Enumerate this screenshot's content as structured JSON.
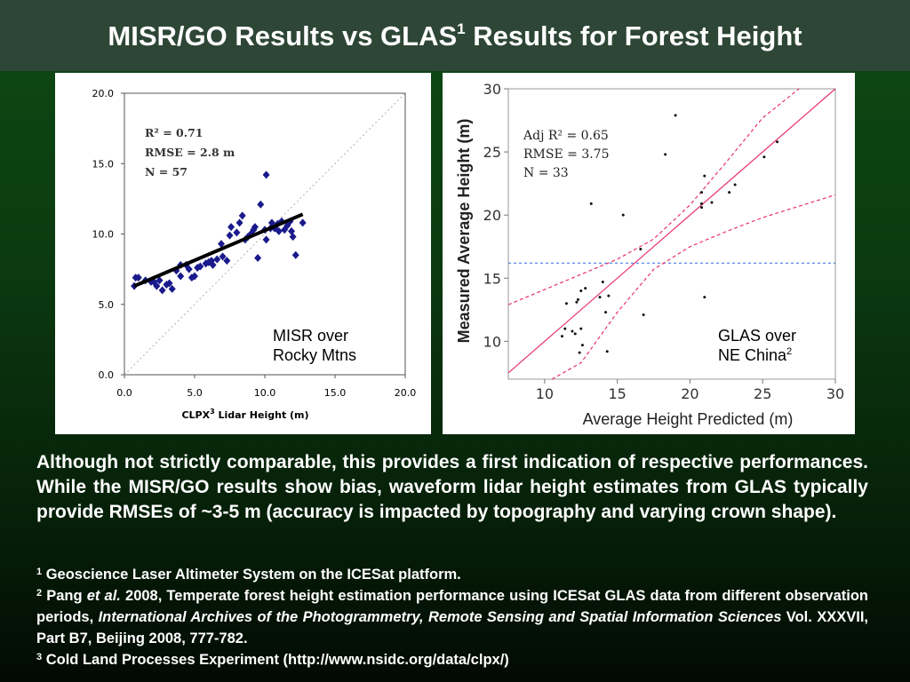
{
  "slide": {
    "title_main": "MISR/GO Results vs GLAS",
    "title_sup": "1",
    "title_tail": " Results for Forest Height",
    "body": "Although not strictly comparable, this provides a first indication of respective performances. While the MISR/GO results show bias, waveform lidar height estimates from GLAS typically provide RMSEs of ~3-5 m (accuracy is impacted by topography and varying crown shape).",
    "footnotes": {
      "n1_mark": "1",
      "n1_text": " Geoscience Laser Altimeter System on the ICESat platform.",
      "n2_mark": "2",
      "n2_author": " Pang ",
      "n2_etal": "et al.",
      "n2_text": " 2008, Temperate forest height estimation performance using ICESat GLAS data from different observation periods, ",
      "n2_journal": "International Archives of the Photogrammetry, Remote Sensing and Spatial Information Sciences",
      "n2_tail": " Vol. XXXVII, Part B7, Beijing 2008, 777-782.",
      "n3_mark": "3",
      "n3_text": " Cold Land Processes Experiment (http://www.nsidc.org/data/clpx/)"
    }
  },
  "chart_data": [
    {
      "type": "scatter",
      "xlabel": "CLPX",
      "xlabel_sup": "3",
      "xlabel_tail": " Lidar Height (m)",
      "ylabel": "",
      "xlim": [
        0,
        20
      ],
      "ylim": [
        0,
        20
      ],
      "xticks": [
        "0.0",
        "5.0",
        "10.0",
        "15.0",
        "20.0"
      ],
      "yticks": [
        "0.0",
        "5.0",
        "10.0",
        "15.0",
        "20.0"
      ],
      "stats": [
        "R² = 0.71",
        "RMSE = 2.8 m",
        "N = 57"
      ],
      "annotation": [
        "MISR over",
        "Rocky Mtns"
      ],
      "point_color": "#1a1a8c",
      "fit_line": [
        [
          0.7,
          6.3
        ],
        [
          12.7,
          11.4
        ]
      ],
      "one_to_one": true,
      "points": [
        [
          0.7,
          6.3
        ],
        [
          0.8,
          6.9
        ],
        [
          1.0,
          6.9
        ],
        [
          1.5,
          6.7
        ],
        [
          2.1,
          6.6
        ],
        [
          2.3,
          6.3
        ],
        [
          2.5,
          6.7
        ],
        [
          2.7,
          6.0
        ],
        [
          3.2,
          6.5
        ],
        [
          3.4,
          6.1
        ],
        [
          3.7,
          7.4
        ],
        [
          4.0,
          7.0
        ],
        [
          4.0,
          7.8
        ],
        [
          4.4,
          7.8
        ],
        [
          4.8,
          6.9
        ],
        [
          5.0,
          7.0
        ],
        [
          5.2,
          7.6
        ],
        [
          5.4,
          7.7
        ],
        [
          5.8,
          7.9
        ],
        [
          6.0,
          8.0
        ],
        [
          6.3,
          7.8
        ],
        [
          6.6,
          8.2
        ],
        [
          6.9,
          9.3
        ],
        [
          7.0,
          8.4
        ],
        [
          7.3,
          8.1
        ],
        [
          7.5,
          9.9
        ],
        [
          7.6,
          10.5
        ],
        [
          8.0,
          10.1
        ],
        [
          8.2,
          10.8
        ],
        [
          8.4,
          11.3
        ],
        [
          8.6,
          9.6
        ],
        [
          8.8,
          9.8
        ],
        [
          9.0,
          10.0
        ],
        [
          9.2,
          10.3
        ],
        [
          9.5,
          8.3
        ],
        [
          9.7,
          12.1
        ],
        [
          10.0,
          10.3
        ],
        [
          10.1,
          9.6
        ],
        [
          10.1,
          14.2
        ],
        [
          10.4,
          10.4
        ],
        [
          10.5,
          10.8
        ],
        [
          10.7,
          10.4
        ],
        [
          10.9,
          10.7
        ],
        [
          11.0,
          10.2
        ],
        [
          11.2,
          10.9
        ],
        [
          11.4,
          10.3
        ],
        [
          11.6,
          10.6
        ],
        [
          11.8,
          10.9
        ],
        [
          11.9,
          10.2
        ],
        [
          12.0,
          9.8
        ],
        [
          12.2,
          8.5
        ],
        [
          12.7,
          10.8
        ],
        [
          6.2,
          8.1
        ],
        [
          4.6,
          7.5
        ],
        [
          3.0,
          6.4
        ],
        [
          1.9,
          6.6
        ],
        [
          9.3,
          10.5
        ]
      ]
    },
    {
      "type": "scatter",
      "xlabel": "Average Height Predicted (m)",
      "ylabel": "Measured Average Height (m)",
      "xlim": [
        7.5,
        30
      ],
      "ylim": [
        7,
        30
      ],
      "xticks": [
        "10",
        "15",
        "20",
        "25",
        "30"
      ],
      "yticks": [
        "10",
        "15",
        "20",
        "25",
        "30"
      ],
      "stats": [
        "Adj R² = 0.65",
        "RMSE = 3.75",
        "N = 33"
      ],
      "annotation": [
        "GLAS over",
        "NE China"
      ],
      "annotation_sup": "2",
      "fit_color": "#e83070",
      "mean_line_color": "#2a6adc",
      "mean_y": 16.2,
      "fit_line": [
        [
          7.5,
          7.5
        ],
        [
          30,
          30
        ]
      ],
      "ci_upper": [
        [
          7.5,
          12.9
        ],
        [
          10,
          14.1
        ],
        [
          12.5,
          15.3
        ],
        [
          15,
          16.5
        ],
        [
          17.5,
          18.1
        ],
        [
          20,
          20.8
        ],
        [
          22.5,
          24.2
        ],
        [
          25,
          27.7
        ],
        [
          27.5,
          31.3
        ]
      ],
      "ci_lower": [
        [
          10.5,
          4.5
        ],
        [
          12.5,
          8.3
        ],
        [
          15,
          12.3
        ],
        [
          17.5,
          15.7
        ],
        [
          20,
          17.5
        ],
        [
          22.5,
          18.7
        ],
        [
          25,
          19.8
        ],
        [
          27.5,
          20.7
        ],
        [
          30,
          21.6
        ]
      ],
      "points": [
        [
          11.2,
          10.4
        ],
        [
          11.4,
          11.0
        ],
        [
          11.5,
          13.0
        ],
        [
          11.9,
          10.8
        ],
        [
          12.1,
          10.6
        ],
        [
          12.2,
          13.1
        ],
        [
          12.3,
          13.3
        ],
        [
          12.4,
          9.1
        ],
        [
          12.5,
          11.0
        ],
        [
          12.5,
          14.0
        ],
        [
          12.6,
          9.7
        ],
        [
          12.8,
          14.2
        ],
        [
          13.2,
          20.9
        ],
        [
          13.8,
          13.5
        ],
        [
          14.0,
          14.7
        ],
        [
          14.2,
          12.3
        ],
        [
          14.3,
          9.2
        ],
        [
          14.4,
          13.6
        ],
        [
          15.4,
          20.0
        ],
        [
          16.6,
          17.3
        ],
        [
          16.8,
          12.1
        ],
        [
          18.3,
          24.8
        ],
        [
          19.0,
          27.9
        ],
        [
          20.8,
          20.6
        ],
        [
          20.8,
          20.9
        ],
        [
          20.8,
          21.8
        ],
        [
          21.0,
          23.1
        ],
        [
          21.0,
          13.5
        ],
        [
          21.5,
          21.0
        ],
        [
          22.7,
          21.8
        ],
        [
          23.1,
          22.4
        ],
        [
          25.1,
          24.6
        ],
        [
          26.0,
          25.8
        ]
      ]
    }
  ]
}
